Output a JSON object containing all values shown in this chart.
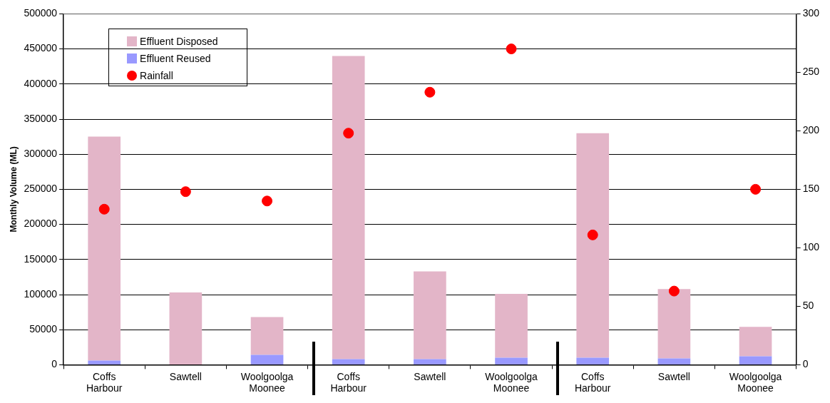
{
  "chart_data": {
    "type": "bar",
    "stacked": true,
    "ylabel": "Monthly Volume (ML)",
    "categories": [
      "Coffs Harbour",
      "Sawtell",
      "Woolgoolga Moonee",
      "Coffs Harbour",
      "Sawtell",
      "Woolgoolga Moonee",
      "Coffs Harbour",
      "Sawtell",
      "Woolgoolga Moonee"
    ],
    "series": [
      {
        "name": "Effluent Reused",
        "color": "#9999ff",
        "values": [
          6000,
          0,
          14000,
          8000,
          8000,
          10000,
          10000,
          9000,
          12000
        ]
      },
      {
        "name": "Effluent Disposed",
        "color": "#e3b5c8",
        "values": [
          319000,
          103000,
          54000,
          432000,
          125000,
          91000,
          320000,
          99000,
          42000
        ]
      },
      {
        "name": "Rainfall",
        "type": "scatter",
        "axis": "y2",
        "marker": "circle",
        "color": "#ff0000",
        "values": [
          133,
          148,
          140,
          198,
          233,
          270,
          111,
          63,
          150
        ]
      }
    ],
    "ylim": [
      0,
      500000
    ],
    "yticks": [
      0,
      50000,
      100000,
      150000,
      200000,
      250000,
      300000,
      350000,
      400000,
      450000,
      500000
    ],
    "y2lim": [
      0,
      300
    ],
    "y2ticks": [
      0,
      50,
      100,
      150,
      200,
      250,
      300
    ],
    "grid": "y",
    "legend": "top left"
  }
}
